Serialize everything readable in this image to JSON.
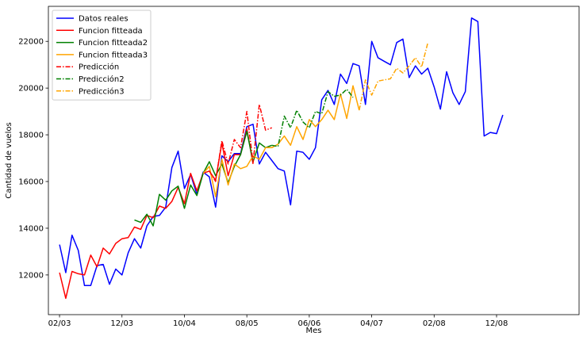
{
  "chart_data": {
    "type": "line",
    "title": "",
    "xlabel": "Mes",
    "ylabel": "Cantidad de vuelos",
    "xlim": [
      -5,
      233
    ],
    "ylim": [
      10300,
      23500
    ],
    "x_ticks": [
      {
        "label": "02/03",
        "x": 0
      },
      {
        "label": "12/03",
        "x": 28
      },
      {
        "label": "10/04",
        "x": 56
      },
      {
        "label": "08/05",
        "x": 84
      },
      {
        "label": "06/06",
        "x": 112
      },
      {
        "label": "04/07",
        "x": 140
      },
      {
        "label": "02/08",
        "x": 168
      },
      {
        "label": "12/08",
        "x": 196
      }
    ],
    "y_ticks": [
      12000,
      14000,
      16000,
      18000,
      20000,
      22000
    ],
    "grid": false,
    "legend_position": "top-left",
    "series": [
      {
        "name": "Datos reales",
        "color": "#0000ff",
        "style": "solid",
        "x": [
          0,
          2.8,
          5.6,
          8.4,
          11.2,
          14,
          16.8,
          19.6,
          22.4,
          25.2,
          28,
          30.8,
          33.6,
          36.4,
          39.2,
          42,
          44.8,
          47.6,
          50.4,
          53.2,
          56,
          58.8,
          61.6,
          64.4,
          67.2,
          70,
          72.8,
          75.6,
          78.4,
          81.2,
          84,
          86.8,
          89.6,
          92.4,
          95.2,
          98,
          100.8,
          103.6,
          106.4,
          109.2,
          112,
          114.8,
          117.6,
          120.4,
          123.2,
          126,
          128.8,
          131.6,
          134.4,
          137.2,
          140,
          142.8,
          145.6,
          148.4,
          151.2,
          154,
          156.8,
          159.6,
          162.4,
          165.2,
          168,
          170.8,
          173.6,
          176.4,
          179.2,
          182,
          184.8,
          187.6,
          190.4,
          193.2,
          196,
          198.8
        ],
        "y": [
          13300,
          12100,
          13700,
          13050,
          11550,
          11550,
          12400,
          12450,
          11600,
          12250,
          12000,
          12950,
          13550,
          13150,
          14100,
          14500,
          14550,
          14900,
          16600,
          17300,
          15700,
          16300,
          15450,
          16400,
          16200,
          14900,
          17100,
          16850,
          17200,
          17200,
          18350,
          18450,
          16750,
          17250,
          16900,
          16550,
          16450,
          15000,
          17300,
          17250,
          16950,
          17450,
          19500,
          19900,
          19300,
          20600,
          20200,
          21050,
          20950,
          19300,
          22000,
          21300,
          21150,
          21000,
          21950,
          22100,
          20450,
          20950,
          20600,
          20850,
          20050,
          19100,
          20700,
          19800,
          19300,
          19850,
          23000,
          22850,
          17950,
          18100,
          18050,
          18850
        ]
      },
      {
        "name": "Funcion fitteada",
        "color": "#ff0000",
        "style": "solid",
        "x": [
          0,
          2.8,
          5.6,
          8.4,
          11.2,
          14,
          16.8,
          19.6,
          22.4,
          25.2,
          28,
          30.8,
          33.6,
          36.4,
          39.2,
          42,
          44.8,
          47.6,
          50.4,
          53.2,
          56,
          58.8,
          61.6,
          64.4,
          67.2,
          70,
          72.8,
          75.6,
          78.4,
          81.2,
          84,
          86.8
        ],
        "y": [
          12100,
          11000,
          12150,
          12050,
          12000,
          12850,
          12350,
          13150,
          12900,
          13350,
          13550,
          13600,
          14050,
          13950,
          14550,
          14450,
          14950,
          14850,
          15150,
          15750,
          15050,
          16350,
          15600,
          16350,
          16450,
          16050,
          17650,
          16250,
          17150,
          17150,
          18250,
          16750
        ]
      },
      {
        "name": "Funcion fitteada2",
        "color": "#008000",
        "style": "solid",
        "x": [
          33.6,
          36.4,
          39.2,
          42,
          44.8,
          47.6,
          50.4,
          53.2,
          56,
          58.8,
          61.6,
          64.4,
          67.2,
          70,
          72.8,
          75.6,
          78.4,
          81.2,
          84,
          86.8,
          89.6,
          92.4,
          95.2
        ],
        "y": [
          14350,
          14250,
          14600,
          14100,
          15450,
          15200,
          15600,
          15800,
          14850,
          15850,
          15400,
          16350,
          16850,
          16250,
          16750,
          15950,
          16650,
          17150,
          18150,
          16850,
          17650,
          17450,
          17550
        ]
      },
      {
        "name": "Funcion fitteada3",
        "color": "#ffa500",
        "style": "solid",
        "x": [
          64.4,
          67.2,
          70,
          72.8,
          75.6,
          78.4,
          81.2,
          84,
          86.8,
          89.6,
          92.4,
          95.2,
          98,
          100.8,
          103.6,
          106.4,
          109.2,
          112,
          114.8,
          117.6,
          120.4,
          123.2,
          126,
          128.8,
          131.6,
          134.4
        ],
        "y": [
          16350,
          16650,
          15350,
          16950,
          15850,
          16750,
          16550,
          16650,
          17100,
          16950,
          17450,
          17450,
          17600,
          17950,
          17550,
          18350,
          17800,
          18650,
          18350,
          18650,
          19050,
          18650,
          19750,
          18700,
          20100,
          19050
        ]
      },
      {
        "name": "Predicción",
        "color": "#ff0000",
        "style": "dashdot",
        "x": [
          67.2,
          70,
          72.8,
          75.6,
          78.4,
          81.2,
          84,
          86.8,
          89.6,
          92.4,
          95.2
        ],
        "y": [
          16450,
          16000,
          17750,
          16750,
          17800,
          17450,
          19000,
          16800,
          19300,
          18200,
          18300
        ]
      },
      {
        "name": "Predicción2",
        "color": "#008000",
        "style": "dashdot",
        "x": [
          95.2,
          98,
          100.8,
          103.6,
          106.4,
          109.2,
          112,
          114.8,
          117.6,
          120.4,
          123.2,
          126,
          128.8,
          131.6
        ],
        "y": [
          17550,
          17500,
          18800,
          18300,
          19050,
          18550,
          18300,
          19000,
          18900,
          19850,
          19650,
          19700,
          19950,
          19600
        ]
      },
      {
        "name": "Predicción3",
        "color": "#ffa500",
        "style": "dashdot",
        "x": [
          134.4,
          137.2,
          140,
          142.8,
          145.6,
          148.4,
          151.2,
          154,
          156.8,
          159.6,
          162.4,
          165.2
        ],
        "y": [
          19050,
          20350,
          19700,
          20300,
          20350,
          20400,
          20850,
          20650,
          20950,
          21300,
          20900,
          21950
        ]
      }
    ]
  }
}
